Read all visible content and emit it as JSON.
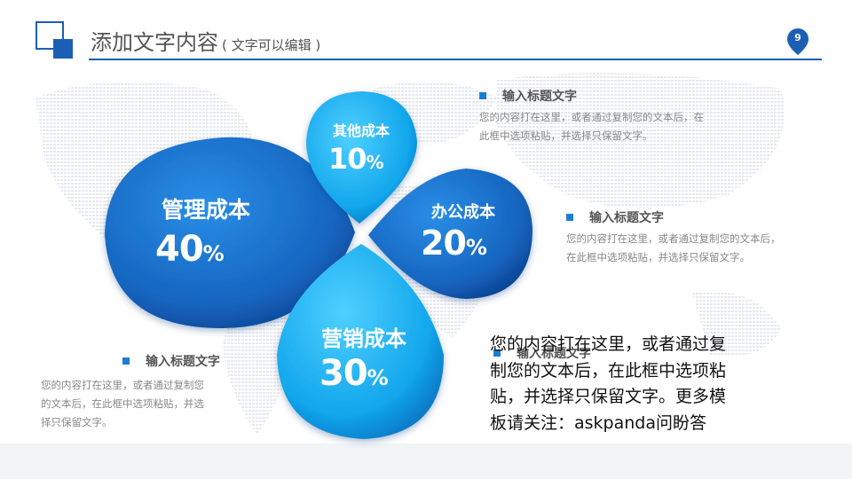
{
  "header": {
    "title": "添加文字内容",
    "subtitle": "( 文字可以编辑 )",
    "page_number": "9"
  },
  "petals": [
    {
      "id": "management",
      "label": "管理成本",
      "value": "40",
      "unit": "%"
    },
    {
      "id": "other",
      "label": "其他成本",
      "value": "10",
      "unit": "%"
    },
    {
      "id": "office",
      "label": "办公成本",
      "value": "20",
      "unit": "%"
    },
    {
      "id": "marketing",
      "label": "营销成本",
      "value": "30",
      "unit": "%"
    }
  ],
  "text_blocks": [
    {
      "heading": "输入标题文字",
      "body_lines": [
        "您的内容打在这里，或者通过复制您的文本后，在",
        "此框中选项粘贴，并选择只保留文字。"
      ]
    },
    {
      "heading": "输入标题文字",
      "body_lines": [
        "您的内容打在这里，或者通过复制您的文本后，",
        "在此框中选项粘贴，并选择只保留文字。"
      ]
    },
    {
      "heading": "输入标题文字",
      "body_lines": [
        "您的内容打在这里，或者通过复制您",
        "的文本后，在此框中选项粘贴，并选",
        "择只保留文字。"
      ]
    },
    {
      "heading": "输入标题文字",
      "body_lines": []
    }
  ],
  "overlay_text": [
    "您的内容打在这里，或者通过复",
    "制您的文本后，在此框中选项粘",
    "贴，并选择只保留文字。更多模",
    "板请关注：askpanda问盼答"
  ],
  "colors": {
    "primary": "#1a5fb4",
    "accent": "#1a7fd4",
    "light_blue": "#1ab0f0",
    "text_gray": "#888888"
  }
}
